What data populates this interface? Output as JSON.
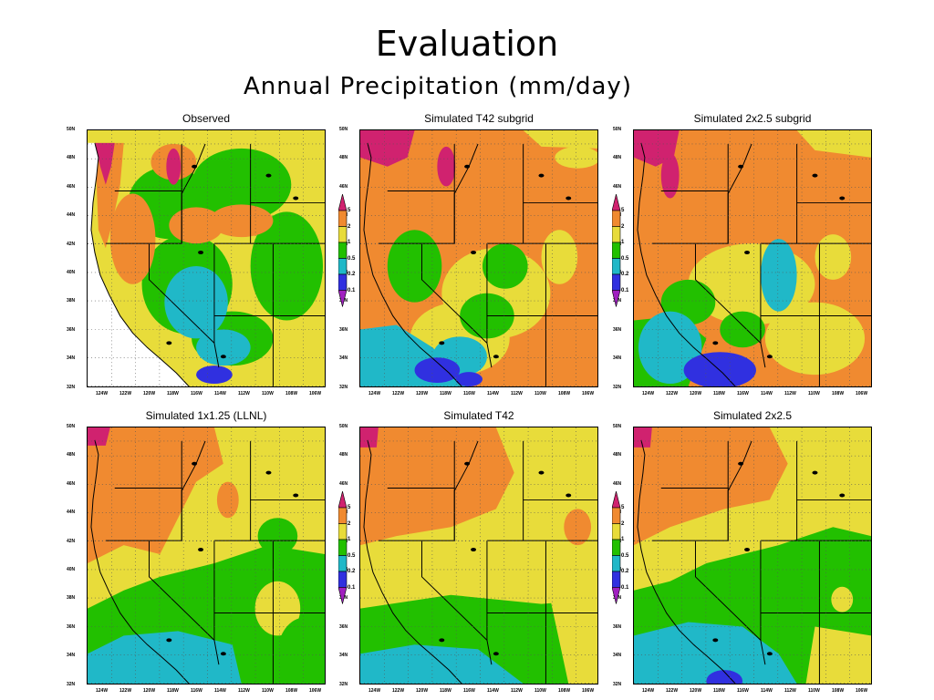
{
  "slide": {
    "title": "Evaluation",
    "subtitle": "Annual Precipitation (mm/day)"
  },
  "panels": [
    {
      "title": "Observed",
      "pattern": "observed"
    },
    {
      "title": "Simulated T42 subgrid",
      "pattern": "subgrid"
    },
    {
      "title": "Simulated 2x2.5 subgrid",
      "pattern": "subgrid2"
    },
    {
      "title": "Simulated 1x1.25 (LLNL)",
      "pattern": "llnl"
    },
    {
      "title": "Simulated T42",
      "pattern": "t42"
    },
    {
      "title": "Simulated 2x2.5",
      "pattern": "coarse"
    }
  ],
  "axes": {
    "lat_ticks": [
      "50N",
      "48N",
      "46N",
      "44N",
      "42N",
      "40N",
      "38N",
      "36N",
      "34N",
      "32N"
    ],
    "lon_ticks": [
      "124W",
      "122W",
      "120W",
      "118W",
      "116W",
      "114W",
      "112W",
      "110W",
      "108W",
      "106W"
    ]
  },
  "colorbar": {
    "labels": [
      "5",
      "2",
      "1",
      "0.5",
      "0.2",
      "0.1"
    ],
    "colors": {
      "above_5": "#d0226f",
      "2_5": "#f08a30",
      "1_2": "#e8dc3a",
      "0.5_1": "#22c000",
      "0.2_0.5": "#20b8c8",
      "0.1_0.2": "#3030e0",
      "below_0.1": "#a020c0",
      "ocean_missing": "#ffffff"
    }
  }
}
